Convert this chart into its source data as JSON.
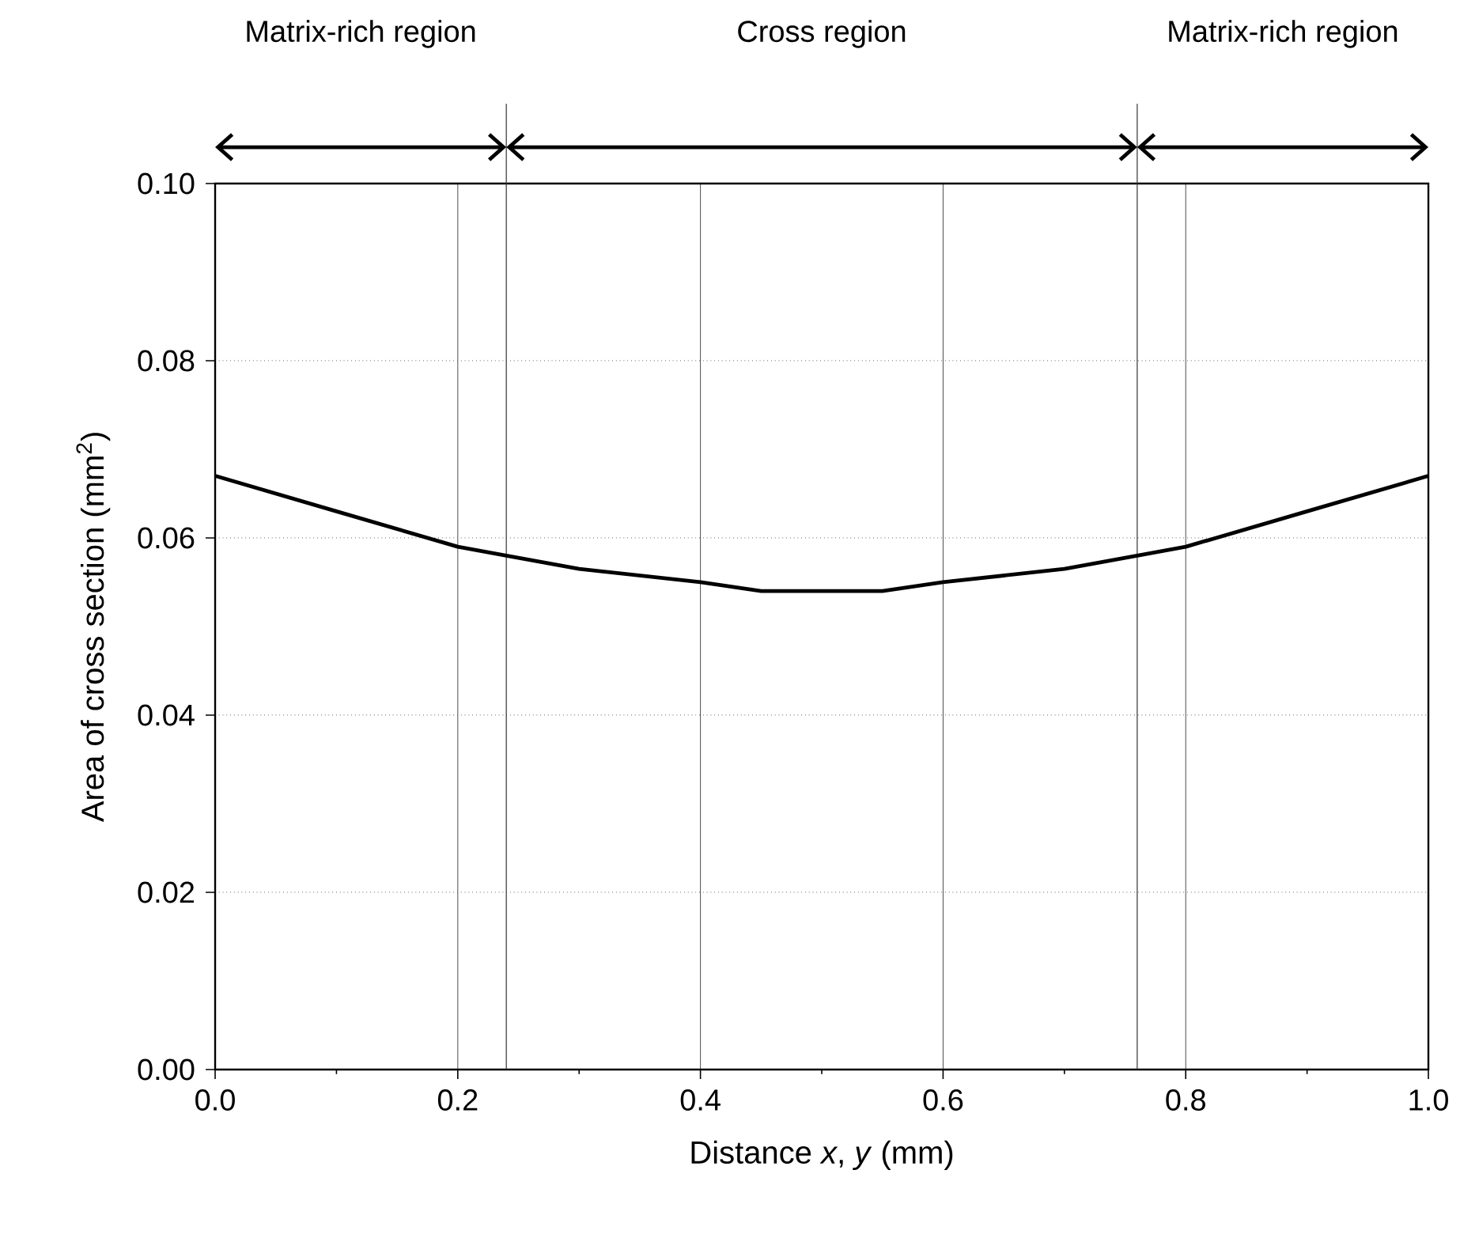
{
  "chart_data": {
    "type": "line",
    "xlabel": "Distance *x*, *y*  (mm)",
    "ylabel": "Area of cross section  (mm$^{2}$)",
    "x": [
      0,
      0.1,
      0.2,
      0.24,
      0.3,
      0.4,
      0.45,
      0.5,
      0.55,
      0.6,
      0.7,
      0.76,
      0.8,
      0.9,
      1.0
    ],
    "series": [
      {
        "color": "#000000",
        "values": [
          0.067,
          0.063,
          0.059,
          0.058,
          0.0565,
          0.055,
          0.054,
          0.054,
          0.054,
          0.055,
          0.0565,
          0.058,
          0.059,
          0.063,
          0.067
        ]
      }
    ],
    "xlim": [
      0,
      1.0
    ],
    "xticks": [
      {
        "value": 0,
        "label": "0.0"
      },
      {
        "value": 0.2,
        "label": "0.2"
      },
      {
        "value": 0.4,
        "label": "0.4"
      },
      {
        "value": 0.6,
        "label": "0.6"
      },
      {
        "value": 0.8,
        "label": "0.8"
      },
      {
        "value": 1.0,
        "label": "1.0"
      }
    ],
    "ylim": [
      0,
      0.1
    ],
    "yticks": [
      {
        "value": 0,
        "label": "0.00"
      },
      {
        "value": 0.02,
        "label": "0.02"
      },
      {
        "value": 0.04,
        "label": "0.04"
      },
      {
        "value": 0.06,
        "label": "0.06"
      },
      {
        "value": 0.08,
        "label": "0.08"
      },
      {
        "value": 0.1,
        "label": "0.10"
      }
    ],
    "grid": true,
    "line_style": "solid",
    "marker": "none",
    "ref_lines": [
      {
        "axis": "x",
        "value": 0.24
      },
      {
        "axis": "x",
        "value": 0.76
      }
    ],
    "annotations": [
      "Matrix-rich region",
      "Cross region",
      "Matrix-rich region"
    ]
  }
}
